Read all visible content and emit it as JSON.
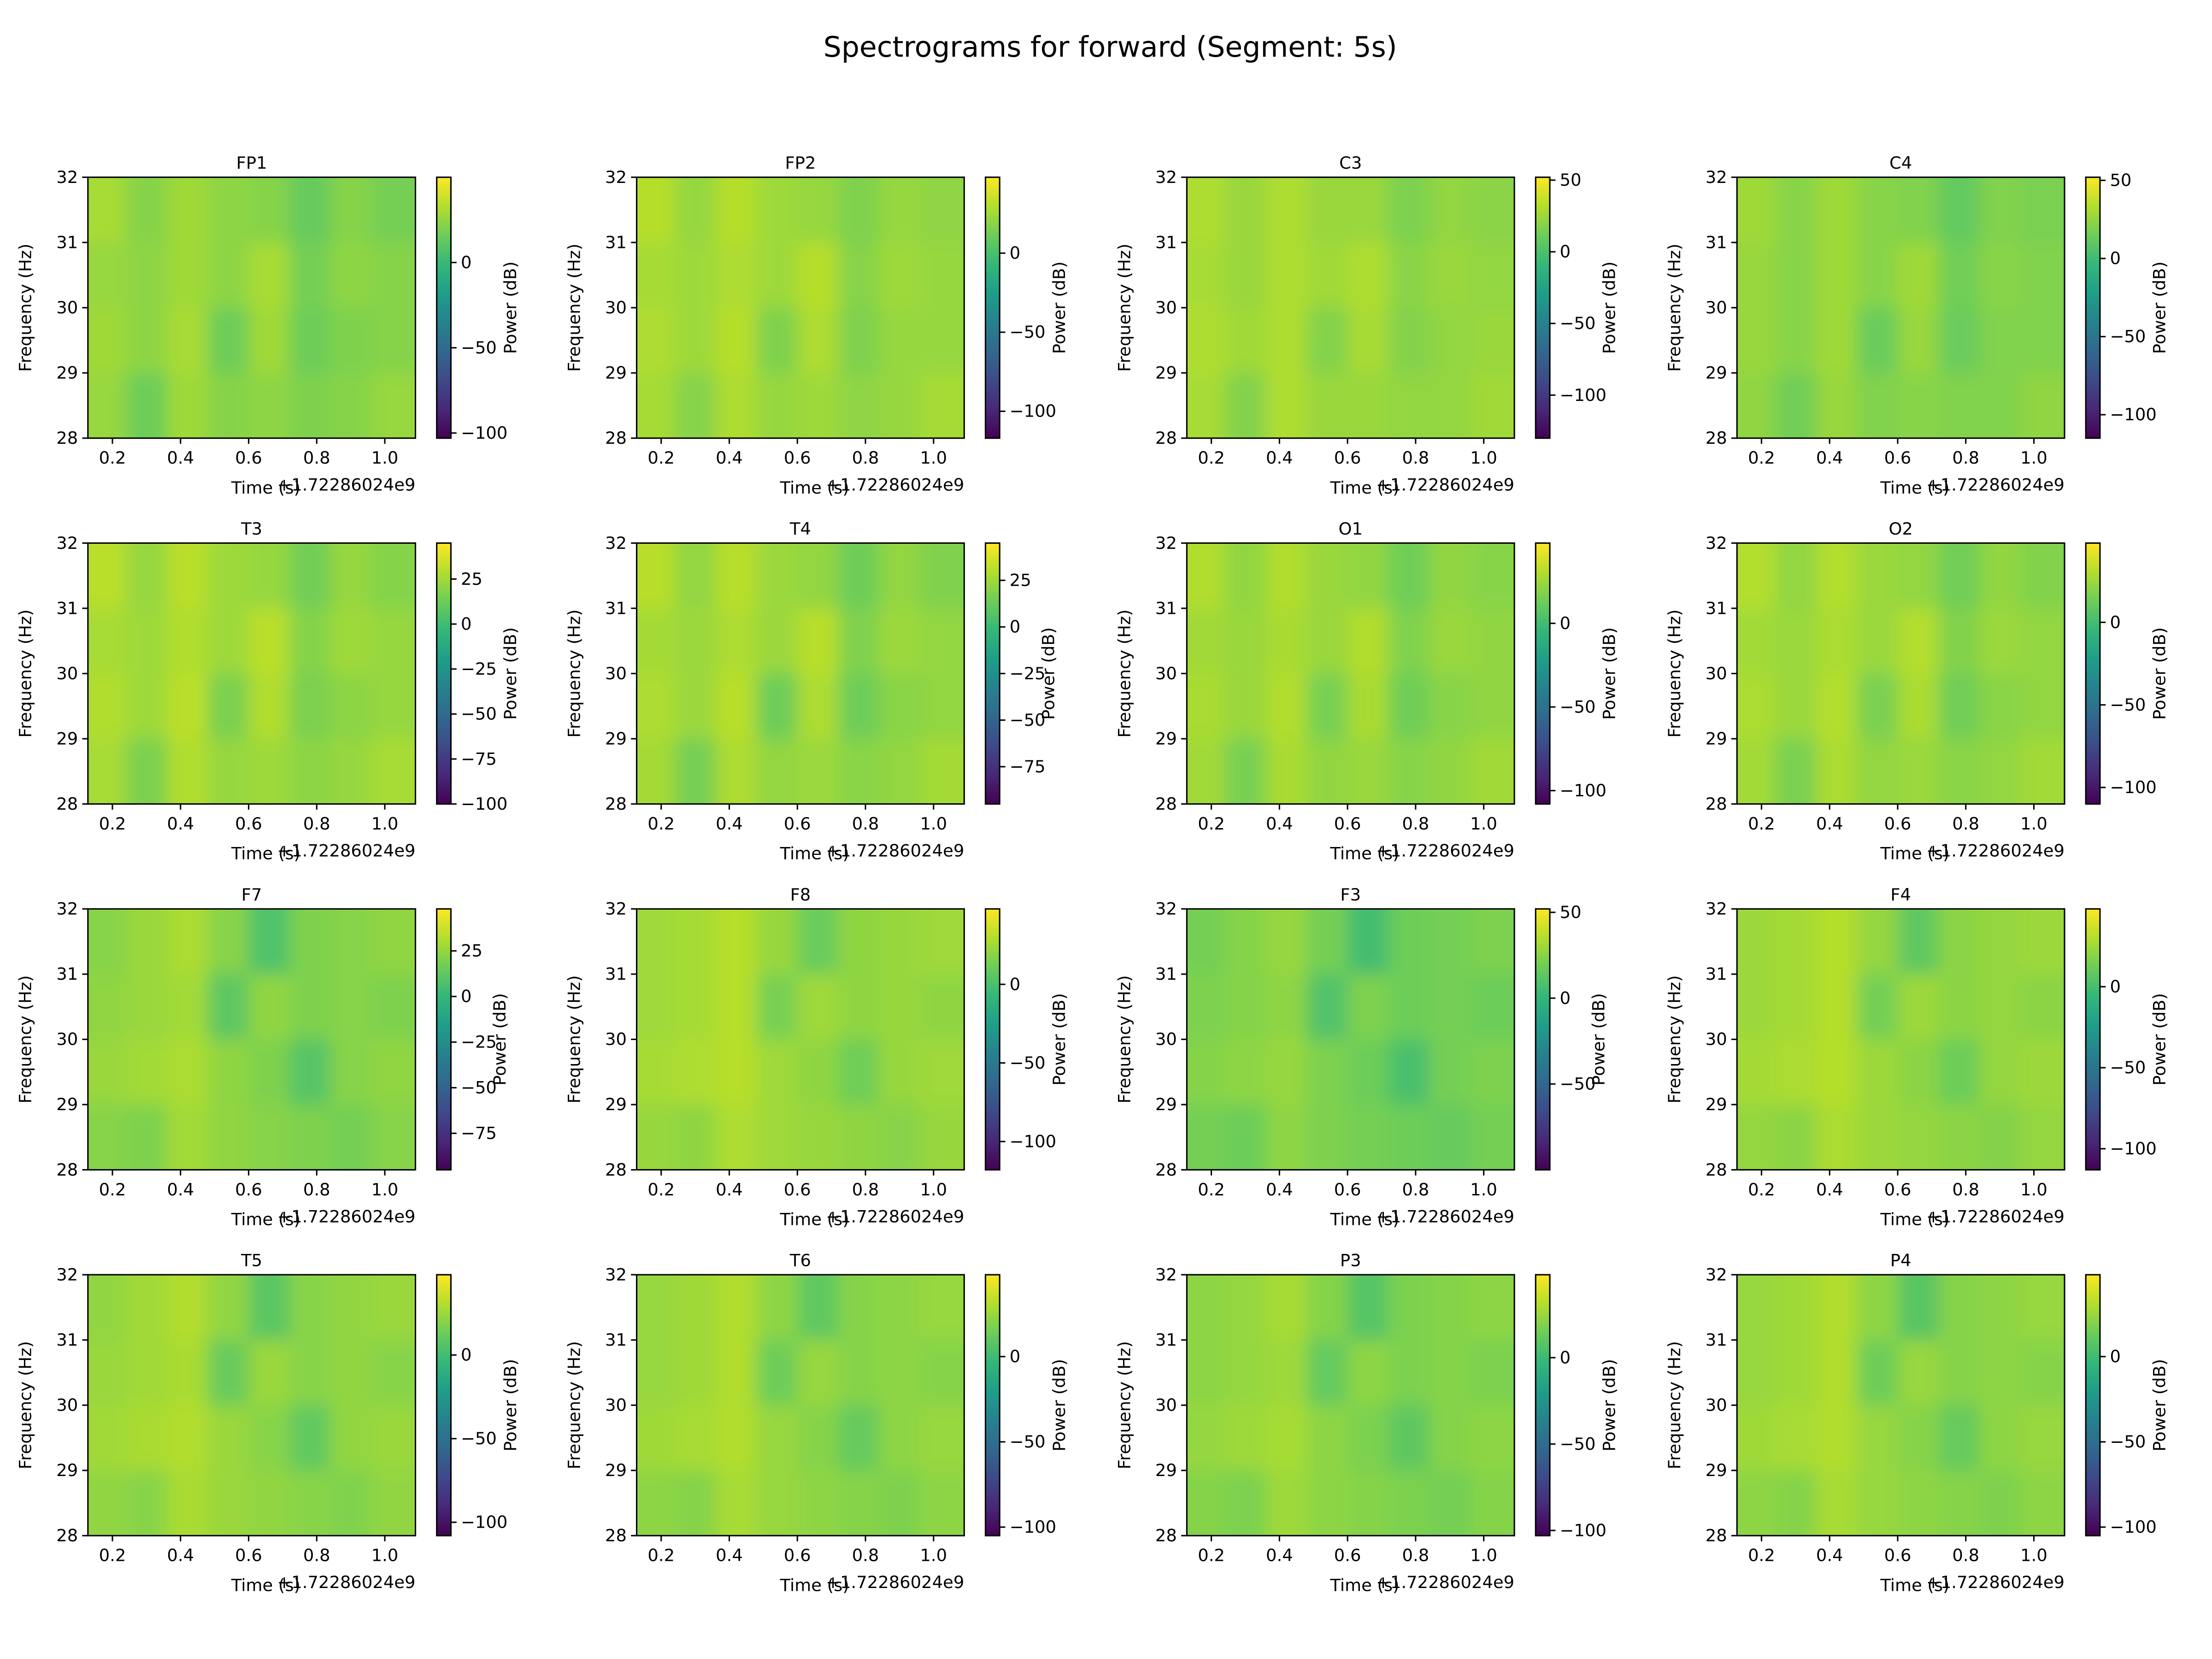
{
  "title": "Spectrograms for forward (Segment: 5s)",
  "chart_data": {
    "type": "heatmap",
    "colormap": "viridis",
    "xlabel": "Time (s)",
    "x_offset_label": "+1.72286024e9",
    "ylabel": "Frequency (Hz)",
    "colorbar_label": "Power (dB)",
    "xlim": [
      0.128,
      1.09
    ],
    "ylim": [
      28,
      32
    ],
    "xticks": [
      "0.2",
      "0.4",
      "0.6",
      "0.8",
      "1.0"
    ],
    "yticks": [
      "28",
      "29",
      "30",
      "31",
      "32"
    ],
    "x": [
      0.18,
      0.3,
      0.42,
      0.54,
      0.66,
      0.78,
      0.9,
      1.02
    ],
    "y": [
      31.5,
      30.5,
      29.5,
      28.5
    ],
    "panels": [
      {
        "title": "FP1",
        "clim": [
          -103,
          50
        ],
        "cticks": [
          0,
          -50,
          -100
        ],
        "z": [
          [
            30,
            22,
            28,
            24,
            22,
            14,
            22,
            18
          ],
          [
            26,
            24,
            28,
            24,
            30,
            18,
            24,
            22
          ],
          [
            28,
            24,
            30,
            16,
            28,
            16,
            20,
            22
          ],
          [
            26,
            16,
            28,
            22,
            24,
            20,
            22,
            26
          ]
        ]
      },
      {
        "title": "FP2",
        "clim": [
          -117,
          48
        ],
        "cticks": [
          0,
          -50,
          -100
        ],
        "z": [
          [
            30,
            22,
            30,
            24,
            22,
            16,
            22,
            20
          ],
          [
            26,
            24,
            28,
            24,
            30,
            18,
            24,
            22
          ],
          [
            28,
            24,
            30,
            16,
            28,
            16,
            22,
            22
          ],
          [
            26,
            18,
            28,
            22,
            24,
            20,
            22,
            26
          ]
        ]
      },
      {
        "title": "C3",
        "clim": [
          -130,
          52
        ],
        "cticks": [
          50,
          0,
          -50,
          -100
        ],
        "z": [
          [
            30,
            24,
            30,
            24,
            24,
            16,
            22,
            20
          ],
          [
            28,
            24,
            30,
            26,
            30,
            20,
            24,
            22
          ],
          [
            30,
            26,
            30,
            18,
            28,
            18,
            22,
            24
          ],
          [
            28,
            18,
            30,
            24,
            24,
            22,
            22,
            26
          ]
        ]
      },
      {
        "title": "C4",
        "clim": [
          -115,
          52
        ],
        "cticks": [
          50,
          0,
          -50,
          -100
        ],
        "z": [
          [
            28,
            22,
            28,
            22,
            20,
            12,
            20,
            18
          ],
          [
            26,
            22,
            28,
            22,
            28,
            16,
            22,
            20
          ],
          [
            26,
            22,
            28,
            14,
            26,
            14,
            20,
            20
          ],
          [
            24,
            16,
            26,
            20,
            22,
            20,
            20,
            24
          ]
        ]
      },
      {
        "title": "T3",
        "clim": [
          -100,
          45
        ],
        "cticks": [
          25,
          0,
          -25,
          -50,
          -75,
          -100
        ],
        "z": [
          [
            30,
            22,
            30,
            24,
            22,
            14,
            22,
            18
          ],
          [
            26,
            24,
            28,
            24,
            30,
            18,
            24,
            22
          ],
          [
            28,
            24,
            30,
            16,
            28,
            16,
            20,
            22
          ],
          [
            26,
            16,
            28,
            22,
            24,
            20,
            22,
            26
          ]
        ]
      },
      {
        "title": "T4",
        "clim": [
          -95,
          45
        ],
        "cticks": [
          25,
          0,
          -25,
          -50,
          -75
        ],
        "z": [
          [
            30,
            22,
            30,
            24,
            22,
            14,
            22,
            18
          ],
          [
            26,
            24,
            28,
            24,
            30,
            18,
            24,
            22
          ],
          [
            28,
            24,
            30,
            14,
            28,
            14,
            20,
            22
          ],
          [
            26,
            16,
            28,
            22,
            24,
            20,
            22,
            26
          ]
        ]
      },
      {
        "title": "O1",
        "clim": [
          -108,
          48
        ],
        "cticks": [
          0,
          -50,
          -100
        ],
        "z": [
          [
            30,
            22,
            30,
            24,
            22,
            14,
            22,
            20
          ],
          [
            26,
            24,
            28,
            24,
            30,
            18,
            24,
            22
          ],
          [
            28,
            24,
            30,
            16,
            28,
            14,
            20,
            22
          ],
          [
            26,
            16,
            28,
            22,
            24,
            20,
            22,
            26
          ]
        ]
      },
      {
        "title": "O2",
        "clim": [
          -110,
          48
        ],
        "cticks": [
          0,
          -50,
          -100
        ],
        "z": [
          [
            30,
            22,
            30,
            24,
            22,
            14,
            22,
            18
          ],
          [
            26,
            24,
            28,
            24,
            30,
            18,
            24,
            22
          ],
          [
            28,
            24,
            30,
            16,
            28,
            14,
            20,
            22
          ],
          [
            26,
            16,
            28,
            22,
            24,
            20,
            22,
            26
          ]
        ]
      },
      {
        "title": "F7",
        "clim": [
          -95,
          48
        ],
        "cticks": [
          25,
          0,
          -25,
          -50,
          -75
        ],
        "z": [
          [
            22,
            26,
            30,
            22,
            8,
            20,
            22,
            24
          ],
          [
            24,
            26,
            28,
            12,
            24,
            20,
            22,
            20
          ],
          [
            26,
            28,
            30,
            24,
            20,
            10,
            22,
            24
          ],
          [
            22,
            20,
            28,
            24,
            22,
            20,
            18,
            22
          ]
        ]
      },
      {
        "title": "F8",
        "clim": [
          -118,
          48
        ],
        "cticks": [
          0,
          -50,
          -100
        ],
        "z": [
          [
            24,
            26,
            30,
            22,
            10,
            20,
            22,
            24
          ],
          [
            24,
            26,
            30,
            14,
            24,
            20,
            22,
            20
          ],
          [
            26,
            28,
            30,
            24,
            20,
            12,
            22,
            24
          ],
          [
            22,
            20,
            28,
            24,
            22,
            20,
            18,
            22
          ]
        ]
      },
      {
        "title": "F3",
        "clim": [
          -100,
          52
        ],
        "cticks": [
          50,
          0,
          -50
        ],
        "z": [
          [
            20,
            24,
            28,
            20,
            6,
            18,
            20,
            22
          ],
          [
            22,
            24,
            26,
            10,
            22,
            18,
            20,
            18
          ],
          [
            24,
            26,
            28,
            22,
            18,
            8,
            20,
            22
          ],
          [
            20,
            18,
            26,
            22,
            20,
            18,
            16,
            20
          ]
        ]
      },
      {
        "title": "F4",
        "clim": [
          -113,
          48
        ],
        "cticks": [
          0,
          -50,
          -100
        ],
        "z": [
          [
            24,
            26,
            30,
            22,
            8,
            20,
            22,
            24
          ],
          [
            24,
            26,
            30,
            14,
            24,
            20,
            22,
            20
          ],
          [
            26,
            28,
            30,
            24,
            20,
            12,
            22,
            24
          ],
          [
            22,
            20,
            28,
            24,
            22,
            20,
            18,
            22
          ]
        ]
      },
      {
        "title": "T5",
        "clim": [
          -108,
          48
        ],
        "cticks": [
          0,
          -50,
          -100
        ],
        "z": [
          [
            22,
            26,
            30,
            22,
            8,
            20,
            22,
            24
          ],
          [
            24,
            26,
            28,
            12,
            24,
            20,
            22,
            20
          ],
          [
            26,
            28,
            30,
            24,
            20,
            10,
            22,
            24
          ],
          [
            22,
            20,
            28,
            24,
            22,
            20,
            18,
            22
          ]
        ]
      },
      {
        "title": "T6",
        "clim": [
          -105,
          48
        ],
        "cticks": [
          0,
          -50,
          -100
        ],
        "z": [
          [
            24,
            26,
            30,
            22,
            10,
            20,
            22,
            24
          ],
          [
            24,
            26,
            30,
            14,
            24,
            20,
            22,
            20
          ],
          [
            26,
            28,
            30,
            24,
            20,
            12,
            22,
            24
          ],
          [
            22,
            20,
            28,
            24,
            22,
            20,
            18,
            22
          ]
        ]
      },
      {
        "title": "P3",
        "clim": [
          -103,
          48
        ],
        "cticks": [
          0,
          -50,
          -100
        ],
        "z": [
          [
            22,
            24,
            28,
            20,
            8,
            18,
            20,
            22
          ],
          [
            22,
            24,
            26,
            12,
            22,
            18,
            20,
            18
          ],
          [
            24,
            26,
            28,
            22,
            18,
            10,
            20,
            22
          ],
          [
            20,
            18,
            26,
            22,
            20,
            18,
            16,
            20
          ]
        ]
      },
      {
        "title": "P4",
        "clim": [
          -105,
          48
        ],
        "cticks": [
          0,
          -50,
          -100
        ],
        "z": [
          [
            24,
            26,
            30,
            22,
            8,
            20,
            22,
            24
          ],
          [
            24,
            26,
            30,
            14,
            24,
            20,
            22,
            20
          ],
          [
            26,
            28,
            30,
            24,
            20,
            12,
            22,
            24
          ],
          [
            22,
            20,
            28,
            24,
            22,
            20,
            18,
            22
          ]
        ]
      }
    ]
  }
}
